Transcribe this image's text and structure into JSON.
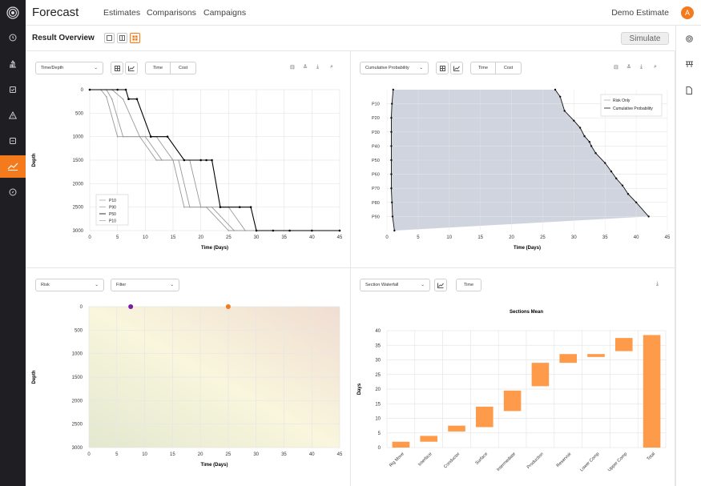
{
  "app": {
    "title": "Forecast",
    "nav": [
      "Estimates",
      "Comparisons",
      "Campaigns"
    ],
    "project": "Demo Estimate",
    "user_initial": "A"
  },
  "overview": {
    "title": "Result Overview",
    "simulate_label": "Simulate"
  },
  "colors": {
    "accent": "#f37b1d",
    "p50": "#000000",
    "lines": "#999999",
    "bar": "#fd9b4b",
    "cumfill": "#d0d4df"
  },
  "panels": {
    "time_depth": {
      "dropdown": "Time/Depth",
      "seg": [
        "Time",
        "Cost"
      ],
      "chart_data": {
        "type": "line",
        "xlabel": "Time (Days)",
        "ylabel": "Depth",
        "xlim": [
          0,
          45
        ],
        "ylim": [
          3000,
          0
        ],
        "xticks": [
          "0",
          "5",
          "10",
          "15",
          "20",
          "25",
          "30",
          "35",
          "40",
          "45"
        ],
        "yticks": [
          "0",
          "500",
          "1000",
          "1500",
          "2000",
          "2500",
          "3000"
        ],
        "legend": [
          "P10",
          "P90",
          "P50",
          "P10"
        ],
        "series": [
          {
            "name": "P50",
            "points": [
              [
                0,
                0
              ],
              [
                5,
                0
              ],
              [
                6.5,
                0
              ],
              [
                7,
                200
              ],
              [
                8.5,
                200
              ],
              [
                11,
                1000
              ],
              [
                14,
                1000
              ],
              [
                17,
                1500
              ],
              [
                20,
                1500
              ],
              [
                21,
                1500
              ],
              [
                22,
                1500
              ],
              [
                23.5,
                2500
              ],
              [
                27,
                2500
              ],
              [
                29,
                2500
              ],
              [
                30,
                3000
              ],
              [
                33,
                3000
              ],
              [
                36,
                3000
              ],
              [
                40,
                3000
              ],
              [
                45,
                3000
              ]
            ]
          },
          {
            "name": "P90",
            "points": [
              [
                0,
                0
              ],
              [
                4,
                0
              ],
              [
                6,
                200
              ],
              [
                9,
                1000
              ],
              [
                12,
                1000
              ],
              [
                15,
                1500
              ],
              [
                18,
                1500
              ],
              [
                20,
                2500
              ],
              [
                25,
                2500
              ],
              [
                28,
                3000
              ],
              [
                45,
                3000
              ]
            ]
          },
          {
            "name": "P10",
            "points": [
              [
                0,
                0
              ],
              [
                3,
                0
              ],
              [
                4,
                200
              ],
              [
                6,
                1000
              ],
              [
                10,
                1000
              ],
              [
                13,
                1500
              ],
              [
                16,
                1500
              ],
              [
                18,
                2500
              ],
              [
                22,
                2500
              ],
              [
                26,
                3000
              ],
              [
                45,
                3000
              ]
            ]
          },
          {
            "name": "P10",
            "points": [
              [
                0,
                0
              ],
              [
                2,
                0
              ],
              [
                3,
                150
              ],
              [
                5,
                1000
              ],
              [
                9,
                1000
              ],
              [
                12,
                1500
              ],
              [
                15,
                1500
              ],
              [
                17,
                2500
              ],
              [
                21,
                2500
              ],
              [
                25,
                3000
              ],
              [
                45,
                3000
              ]
            ]
          }
        ]
      }
    },
    "cumulative": {
      "dropdown": "Cumulative Probability",
      "seg": [
        "Time",
        "Cost"
      ],
      "chart_data": {
        "type": "line",
        "xlabel": "Time (Days)",
        "xlim": [
          0,
          45
        ],
        "xticks": [
          "0",
          "5",
          "10",
          "15",
          "20",
          "25",
          "30",
          "35",
          "40",
          "45"
        ],
        "yticks": [
          "P10",
          "P20",
          "P30",
          "P40",
          "P50",
          "P60",
          "P70",
          "P80",
          "P90"
        ],
        "legend": [
          "Risk Only",
          "Cumulative Probability"
        ],
        "series": [
          {
            "name": "Risk Only",
            "points": [
              [
                1,
                0
              ],
              [
                0.8,
                10
              ],
              [
                0.7,
                20
              ],
              [
                0.7,
                30
              ],
              [
                0.7,
                40
              ],
              [
                0.7,
                50
              ],
              [
                0.7,
                60
              ],
              [
                0.7,
                70
              ],
              [
                0.8,
                80
              ],
              [
                0.9,
                90
              ],
              [
                1.2,
                100
              ]
            ]
          },
          {
            "name": "Cumulative Probability",
            "points": [
              [
                27,
                0
              ],
              [
                27.8,
                5
              ],
              [
                28.5,
                15
              ],
              [
                30,
                22
              ],
              [
                31,
                27
              ],
              [
                31.7,
                33
              ],
              [
                32.5,
                37
              ],
              [
                32.8,
                40
              ],
              [
                33.5,
                45
              ],
              [
                35,
                52
              ],
              [
                36,
                58
              ],
              [
                36.8,
                63
              ],
              [
                37.8,
                68
              ],
              [
                38.7,
                74
              ],
              [
                40,
                80
              ],
              [
                42,
                90
              ]
            ]
          }
        ]
      }
    },
    "risk": {
      "dropdown": "Risk",
      "filter": "Filter",
      "chart_data": {
        "type": "scatter",
        "xlabel": "Time (Days)",
        "ylabel": "Depth",
        "xlim": [
          0,
          45
        ],
        "ylim": [
          3000,
          0
        ],
        "xticks": [
          "0",
          "5",
          "10",
          "15",
          "20",
          "25",
          "30",
          "35",
          "40",
          "45"
        ],
        "yticks": [
          "0",
          "500",
          "1000",
          "1500",
          "2000",
          "2500",
          "3000"
        ],
        "points": [
          {
            "x": 7.5,
            "y": 0,
            "color": "#7b1fa2"
          },
          {
            "x": 25,
            "y": 0,
            "color": "#f37b1d"
          }
        ]
      }
    },
    "waterfall": {
      "dropdown": "Section Waterfall",
      "seg": [
        "Time"
      ],
      "chart_data": {
        "type": "bar",
        "title": "Sections Mean",
        "ylabel": "Days",
        "ylim": [
          0,
          40
        ],
        "yticks": [
          "0",
          "5",
          "10",
          "15",
          "20",
          "25",
          "30",
          "35",
          "40"
        ],
        "categories": [
          "Rig Move",
          "Interface",
          "Conductor",
          "Surface",
          "Intermediate",
          "Production",
          "Reservoir",
          "Lower Comp",
          "Upper Comp",
          "Total"
        ],
        "ranges": [
          [
            0,
            2
          ],
          [
            2,
            4
          ],
          [
            5.5,
            7.5
          ],
          [
            7,
            14
          ],
          [
            12.5,
            19.5
          ],
          [
            21,
            29
          ],
          [
            29,
            32
          ],
          [
            31,
            32
          ],
          [
            33,
            37.5
          ],
          [
            0,
            38.5
          ]
        ]
      }
    }
  }
}
